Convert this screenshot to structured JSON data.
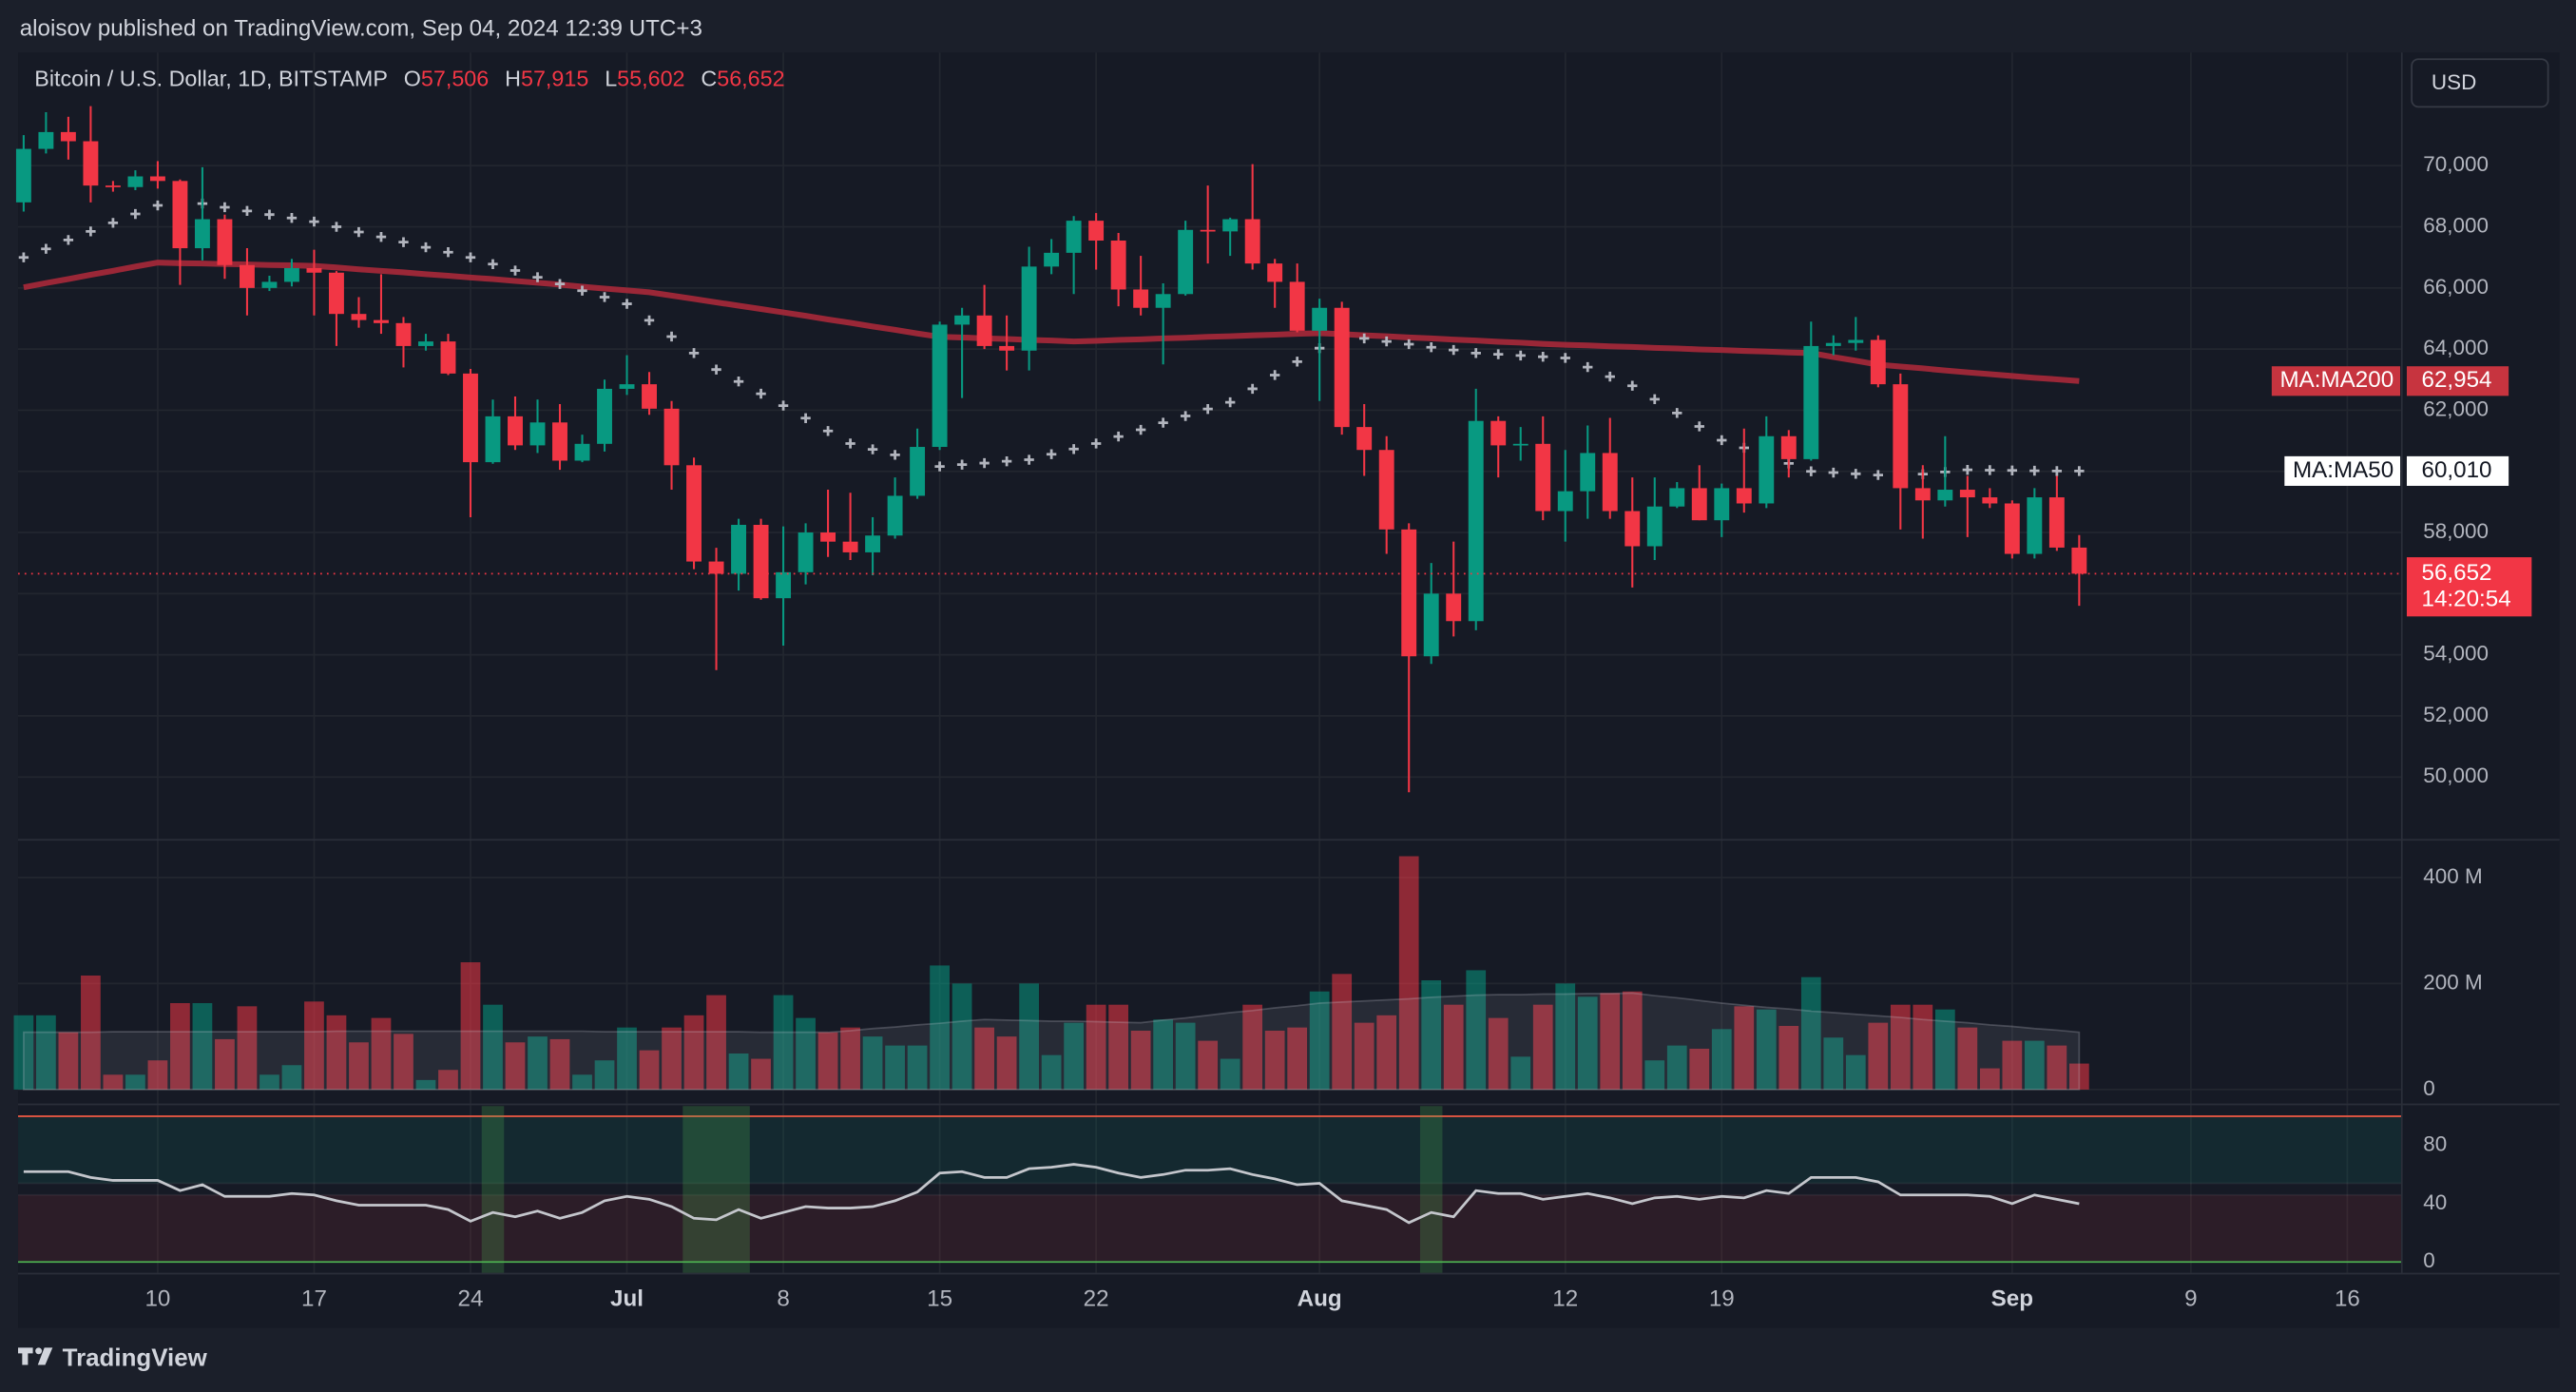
{
  "header": {
    "published": "aloisov published on TradingView.com, Sep 04, 2024 12:39 UTC+3"
  },
  "chart_data": {
    "type": "candlestick",
    "symbol": "Bitcoin / U.S. Dollar, 1D, BITSTAMP",
    "ohlc_legend": [
      {
        "key": "O",
        "value": 57506,
        "label": "57,506"
      },
      {
        "key": "H",
        "value": 57915,
        "label": "57,915"
      },
      {
        "key": "L",
        "value": 55602,
        "label": "55,602"
      },
      {
        "key": "C",
        "value": 56652,
        "label": "56,652"
      }
    ],
    "currency": "USD",
    "x": [
      "Jun 4",
      "Jun 5",
      "Jun 6",
      "Jun 7",
      "Jun 8",
      "Jun 9",
      "Jun 10",
      "Jun 11",
      "Jun 12",
      "Jun 13",
      "Jun 14",
      "Jun 15",
      "Jun 16",
      "Jun 17",
      "Jun 18",
      "Jun 19",
      "Jun 20",
      "Jun 21",
      "Jun 22",
      "Jun 23",
      "Jun 24",
      "Jun 25",
      "Jun 26",
      "Jun 27",
      "Jun 28",
      "Jun 29",
      "Jun 30",
      "Jul 1",
      "Jul 2",
      "Jul 3",
      "Jul 4",
      "Jul 5",
      "Jul 6",
      "Jul 7",
      "Jul 8",
      "Jul 9",
      "Jul 10",
      "Jul 11",
      "Jul 12",
      "Jul 13",
      "Jul 14",
      "Jul 15",
      "Jul 16",
      "Jul 17",
      "Jul 18",
      "Jul 19",
      "Jul 20",
      "Jul 21",
      "Jul 22",
      "Jul 23",
      "Jul 24",
      "Jul 25",
      "Jul 26",
      "Jul 27",
      "Jul 28",
      "Jul 29",
      "Jul 30",
      "Jul 31",
      "Aug 1",
      "Aug 2",
      "Aug 3",
      "Aug 4",
      "Aug 5",
      "Aug 6",
      "Aug 7",
      "Aug 8",
      "Aug 9",
      "Aug 10",
      "Aug 11",
      "Aug 12",
      "Aug 13",
      "Aug 14",
      "Aug 15",
      "Aug 16",
      "Aug 17",
      "Aug 18",
      "Aug 19",
      "Aug 20",
      "Aug 21",
      "Aug 22",
      "Aug 23",
      "Aug 24",
      "Aug 25",
      "Aug 26",
      "Aug 27",
      "Aug 28",
      "Aug 29",
      "Aug 30",
      "Aug 31",
      "Sep 1",
      "Sep 2",
      "Sep 3",
      "Sep 4"
    ],
    "open": [
      68800,
      70550,
      71100,
      70800,
      69350,
      69300,
      69650,
      69500,
      67300,
      68250,
      66750,
      66000,
      66200,
      66650,
      66500,
      65150,
      64950,
      64850,
      64100,
      64250,
      63200,
      60300,
      61800,
      60850,
      61600,
      60350,
      60900,
      62700,
      62850,
      62050,
      60200,
      57050,
      56650,
      58250,
      55850,
      56700,
      58000,
      57700,
      57350,
      57900,
      59200,
      60800,
      64800,
      65100,
      64100,
      63950,
      66700,
      67150,
      68200,
      67550,
      65950,
      65350,
      65800,
      67900,
      67850,
      68250,
      66800,
      66200,
      64600,
      65350,
      61450,
      60700,
      58100,
      53950,
      56000,
      55100,
      61650,
      60850,
      60900,
      58700,
      59350,
      60600,
      58700,
      57550,
      58850,
      59450,
      58400,
      59450,
      58950,
      61150,
      60400,
      64100,
      64200,
      64300,
      62850,
      59450,
      59050,
      59400,
      59150,
      58950,
      57300,
      59150,
      57506
    ],
    "high": [
      71000,
      71750,
      71600,
      71950,
      69500,
      69850,
      70150,
      69550,
      69950,
      68400,
      67300,
      66400,
      66950,
      67250,
      66550,
      65700,
      66450,
      65050,
      64500,
      64500,
      63350,
      62350,
      62450,
      62350,
      62200,
      61200,
      63000,
      63800,
      63250,
      62300,
      60450,
      57500,
      58450,
      58450,
      58200,
      58300,
      59400,
      59300,
      58500,
      59800,
      61400,
      64900,
      65350,
      66100,
      65100,
      67350,
      67600,
      68350,
      68450,
      67800,
      67050,
      66150,
      68200,
      69350,
      68300,
      70050,
      66950,
      66800,
      65650,
      65550,
      62200,
      61150,
      58300,
      57000,
      57700,
      62700,
      61800,
      61450,
      61800,
      60700,
      61500,
      61750,
      59800,
      59800,
      59650,
      60200,
      59600,
      61400,
      61800,
      61350,
      64900,
      64450,
      65050,
      64450,
      63200,
      60200,
      61150,
      59850,
      59450,
      59050,
      59450,
      59850,
      57915
    ],
    "low": [
      68500,
      70400,
      70200,
      68800,
      69150,
      69200,
      69250,
      66100,
      66900,
      66300,
      65100,
      65900,
      66050,
      65100,
      64100,
      64700,
      64500,
      63400,
      63950,
      63150,
      58500,
      60250,
      60700,
      60600,
      60050,
      60300,
      60650,
      62500,
      61850,
      59400,
      56800,
      53500,
      56100,
      55800,
      54300,
      56300,
      57200,
      57100,
      56600,
      57800,
      59100,
      60700,
      62400,
      64000,
      63300,
      63300,
      66450,
      65800,
      66600,
      65400,
      65100,
      63500,
      65750,
      66800,
      67050,
      66600,
      65350,
      64550,
      62300,
      61200,
      59850,
      57300,
      49500,
      53700,
      54600,
      54800,
      59800,
      60350,
      58400,
      57700,
      58450,
      58450,
      56200,
      57100,
      58800,
      58400,
      57850,
      58650,
      58800,
      59800,
      60350,
      63800,
      63950,
      62750,
      58100,
      57800,
      58850,
      57850,
      58800,
      57150,
      57150,
      57400,
      55602
    ],
    "close": [
      70550,
      71100,
      70800,
      69350,
      69300,
      69650,
      69500,
      67300,
      68250,
      66750,
      66000,
      66200,
      66650,
      66500,
      65150,
      64950,
      64850,
      64100,
      64250,
      63200,
      60300,
      61800,
      60850,
      61600,
      60350,
      60900,
      62700,
      62850,
      62050,
      60200,
      57050,
      56650,
      58250,
      55850,
      56700,
      58000,
      57700,
      57350,
      57900,
      59200,
      60800,
      64800,
      65100,
      64100,
      63950,
      66700,
      67150,
      68200,
      67550,
      65950,
      65350,
      65800,
      67900,
      67850,
      68250,
      66800,
      66200,
      64600,
      65350,
      61450,
      60700,
      58100,
      53950,
      56000,
      55100,
      61650,
      60850,
      60900,
      58700,
      59350,
      60600,
      58700,
      57550,
      58850,
      59450,
      58400,
      59450,
      58950,
      61150,
      60400,
      64100,
      64200,
      64300,
      62850,
      59450,
      59050,
      59400,
      59150,
      58950,
      57300,
      59150,
      57506,
      56652
    ],
    "up_color": "#089981",
    "down_color": "#f23645",
    "ylim": [
      48000,
      73700
    ],
    "yticks": [
      {
        "value": 50000,
        "label": "50,000"
      },
      {
        "value": 52000,
        "label": "52,000"
      },
      {
        "value": 54000,
        "label": "54,000"
      },
      {
        "value": 56000,
        "label": "56,000"
      },
      {
        "value": 58000,
        "label": "58,000"
      },
      {
        "value": 60000,
        "label": "60,000"
      },
      {
        "value": 62000,
        "label": "62,000"
      },
      {
        "value": 64000,
        "label": "64,000"
      },
      {
        "value": 66000,
        "label": "66,000"
      },
      {
        "value": 68000,
        "label": "68,000"
      },
      {
        "value": 70000,
        "label": "70,000"
      }
    ],
    "xticks": [
      {
        "value": "Jun 10",
        "label": "10"
      },
      {
        "value": "Jun 17",
        "label": "17"
      },
      {
        "value": "Jun 24",
        "label": "24"
      },
      {
        "value": "Jul 1",
        "label": "Jul"
      },
      {
        "value": "Jul 8",
        "label": "8"
      },
      {
        "value": "Jul 15",
        "label": "15"
      },
      {
        "value": "Jul 22",
        "label": "22"
      },
      {
        "value": "Aug 1",
        "label": "Aug"
      },
      {
        "value": "Aug 12",
        "label": "12"
      },
      {
        "value": "Aug 19",
        "label": "19"
      },
      {
        "value": "Sep 1",
        "label": "Sep"
      },
      {
        "value": "Sep 9",
        "label": "9"
      },
      {
        "value": "Sep 16",
        "label": "16"
      }
    ],
    "overlays": [
      {
        "name": "MA:MA200",
        "style": "line",
        "color": "#a8293a",
        "tag_fill": "#c7343f",
        "tag_text": "#ffffff",
        "last_label": "62,954",
        "values": [
          66020,
          66160,
          66290,
          66430,
          66560,
          66700,
          66830,
          66810,
          66800,
          66780,
          66770,
          66750,
          66740,
          66720,
          66670,
          66610,
          66560,
          66510,
          66450,
          66400,
          66340,
          66290,
          66230,
          66170,
          66110,
          66040,
          65980,
          65920,
          65860,
          65750,
          65640,
          65530,
          65420,
          65310,
          65200,
          65090,
          64970,
          64860,
          64740,
          64630,
          64510,
          64400,
          64380,
          64350,
          64330,
          64300,
          64280,
          64250,
          64270,
          64300,
          64320,
          64350,
          64370,
          64400,
          64420,
          64450,
          64470,
          64500,
          64520,
          64490,
          64450,
          64420,
          64380,
          64350,
          64310,
          64280,
          64240,
          64210,
          64170,
          64140,
          64120,
          64090,
          64070,
          64040,
          64020,
          63990,
          63970,
          63940,
          63920,
          63890,
          63870,
          63740,
          63620,
          63490,
          63430,
          63370,
          63300,
          63240,
          63180,
          63120,
          63060,
          63010,
          62954
        ]
      },
      {
        "name": "MA:MA50",
        "style": "cross",
        "color": "#b2b5be",
        "tag_fill": "#ffffff",
        "tag_text": "#131722",
        "last_label": "60,010",
        "values": [
          67000,
          67280,
          67570,
          67850,
          68130,
          68420,
          68700,
          68870,
          68760,
          68640,
          68520,
          68400,
          68290,
          68170,
          68000,
          67830,
          67670,
          67500,
          67330,
          67170,
          67000,
          66780,
          66570,
          66350,
          66130,
          65910,
          65700,
          65480,
          64940,
          64410,
          63870,
          63330,
          62940,
          62540,
          62150,
          61740,
          61320,
          60910,
          60720,
          60540,
          60350,
          60160,
          60220,
          60270,
          60330,
          60380,
          60560,
          60730,
          60910,
          61140,
          61360,
          61590,
          61810,
          62040,
          62260,
          62700,
          63150,
          63590,
          64030,
          64190,
          64350,
          64250,
          64160,
          64060,
          63970,
          63870,
          63830,
          63790,
          63750,
          63710,
          63410,
          63100,
          62800,
          62360,
          61910,
          61470,
          61020,
          60770,
          60510,
          60260,
          60000,
          59960,
          59920,
          59880,
          59840,
          59910,
          59980,
          60050,
          60040,
          60030,
          60020,
          60010,
          60010
        ]
      }
    ],
    "price_line": {
      "value": 56652,
      "label": "56,652",
      "countdown": "14:20:54"
    },
    "volume": {
      "ylim": [
        -28,
        471
      ],
      "yticks": [
        {
          "value": 400,
          "label": "400 M"
        },
        {
          "value": 200,
          "label": "200 M"
        },
        0
      ],
      "values": [
        140,
        140,
        108,
        215,
        28,
        28,
        55,
        163,
        163,
        95,
        157,
        28,
        46,
        166,
        140,
        89,
        135,
        105,
        18,
        37,
        240,
        160,
        89,
        100,
        95,
        28,
        55,
        117,
        74,
        117,
        140,
        178,
        68,
        58,
        178,
        135,
        108,
        117,
        100,
        83,
        83,
        234,
        200,
        117,
        100,
        200,
        65,
        126,
        160,
        160,
        111,
        132,
        126,
        92,
        58,
        160,
        111,
        117,
        185,
        218,
        126,
        140,
        440,
        206,
        160,
        225,
        135,
        62,
        160,
        200,
        175,
        182,
        185,
        55,
        83,
        77,
        114,
        157,
        151,
        120,
        212,
        98,
        65,
        126,
        160,
        160,
        151,
        117,
        40,
        92,
        92,
        83,
        49
      ],
      "ma": [
        108,
        108,
        108,
        108,
        109,
        109,
        109,
        109,
        109,
        109,
        109,
        109,
        109,
        109,
        110,
        110,
        110,
        110,
        110,
        110,
        110,
        110,
        110,
        110,
        110,
        110,
        109,
        109,
        109,
        109,
        109,
        109,
        109,
        108,
        108,
        108,
        108,
        111,
        115,
        118,
        122,
        125,
        129,
        132,
        131,
        130,
        129,
        129,
        128,
        127,
        126,
        131,
        135,
        140,
        145,
        149,
        154,
        158,
        163,
        165,
        167,
        169,
        171,
        174,
        176,
        178,
        179,
        179,
        180,
        180,
        181,
        181,
        182,
        177,
        173,
        168,
        163,
        159,
        155,
        152,
        148,
        145,
        142,
        139,
        136,
        132,
        129,
        126,
        122,
        119,
        115,
        112,
        108
      ]
    },
    "oscillator": {
      "color": "#c4c6cc",
      "ylim": [
        -8,
        107
      ],
      "yticks": [
        0,
        40,
        80
      ],
      "upper": 100,
      "lower": 0,
      "band": [
        46,
        54
      ],
      "highlights": [
        [
          "Jun 25",
          "Jun 25"
        ],
        [
          "Jul 4",
          "Jul 6"
        ],
        [
          "Aug 6",
          "Aug 6"
        ]
      ],
      "values": [
        62,
        62,
        62,
        58,
        56,
        56,
        56,
        49,
        53,
        45,
        45,
        45,
        47,
        46,
        42,
        39,
        39,
        39,
        39,
        36,
        28,
        34,
        31,
        35,
        30,
        34,
        42,
        45,
        43,
        38,
        30,
        29,
        36,
        30,
        34,
        38,
        37,
        37,
        38,
        42,
        48,
        61,
        62,
        58,
        58,
        64,
        65,
        67,
        65,
        61,
        58,
        60,
        63,
        63,
        64,
        60,
        57,
        53,
        54,
        42,
        39,
        36,
        27,
        34,
        31,
        49,
        47,
        47,
        43,
        45,
        47,
        44,
        40,
        44,
        45,
        43,
        45,
        44,
        49,
        47,
        58,
        58,
        58,
        55,
        46,
        46,
        46,
        46,
        45,
        40,
        46,
        43,
        40
      ]
    }
  },
  "footer": {
    "brand": "TradingView"
  }
}
